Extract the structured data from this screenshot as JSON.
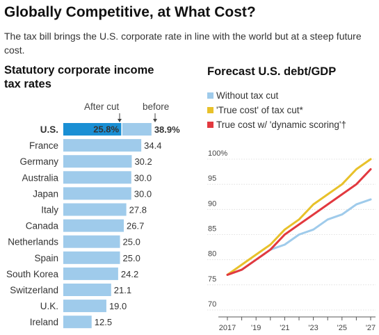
{
  "title": "Globally Competitive, at What Cost?",
  "subtitle": "The tax bill brings the U.S. corporate rate in line with the world but at a steep future cost.",
  "colors": {
    "bar": "#9fcbeb",
    "highlight": "#1a8fd4",
    "line_without": "#9fcbeb",
    "line_true": "#e8c12a",
    "line_dynamic": "#e2393f"
  },
  "chart_data": [
    {
      "type": "bar",
      "title": "Statutory corporate income tax rates",
      "orientation": "horizontal",
      "annotations": {
        "after_cut": "After cut",
        "before": "before"
      },
      "us_after_cut_label": "25.8%",
      "categories": [
        "U.S.",
        "France",
        "Germany",
        "Australia",
        "Japan",
        "Italy",
        "Canada",
        "Netherlands",
        "Spain",
        "South Korea",
        "Switzerland",
        "U.K.",
        "Ireland"
      ],
      "values": [
        38.9,
        34.4,
        30.2,
        30.0,
        30.0,
        27.8,
        26.7,
        25.0,
        25.0,
        24.2,
        21.1,
        19.0,
        12.5
      ],
      "value_labels": [
        "38.9%",
        "34.4",
        "30.2",
        "30.0",
        "30.0",
        "27.8",
        "26.7",
        "25.0",
        "25.0",
        "24.2",
        "21.1",
        "19.0",
        "12.5"
      ],
      "us_after_cut": 25.8
    },
    {
      "type": "line",
      "title": "Forecast U.S. debt/GDP",
      "x": [
        2017,
        2018,
        2019,
        2020,
        2021,
        2022,
        2023,
        2024,
        2025,
        2026,
        2027
      ],
      "x_tick_labels": [
        "2017",
        "'19",
        "'21",
        "'23",
        "'25",
        "'27"
      ],
      "x_tick_values": [
        2017,
        2019,
        2021,
        2023,
        2025,
        2027
      ],
      "y_ticks": [
        70,
        75,
        80,
        85,
        90,
        95,
        100
      ],
      "y_tick_labels": [
        "70",
        "75",
        "80",
        "85",
        "90",
        "95",
        "100%"
      ],
      "ylim": [
        70,
        100
      ],
      "series": [
        {
          "name": "Without tax cut",
          "color": "#9fcbeb",
          "values": [
            77,
            78,
            80,
            82,
            83,
            85,
            86,
            88,
            89,
            91,
            92
          ]
        },
        {
          "name": "'True cost' of tax cut*",
          "color": "#e8c12a",
          "values": [
            77,
            79,
            81,
            83,
            86,
            88,
            91,
            93,
            95,
            98,
            100
          ]
        },
        {
          "name": "True cost w/ 'dynamic scoring'†",
          "color": "#e2393f",
          "values": [
            77,
            78,
            80,
            82,
            85,
            87,
            89,
            91,
            93,
            95,
            98
          ]
        }
      ]
    }
  ]
}
